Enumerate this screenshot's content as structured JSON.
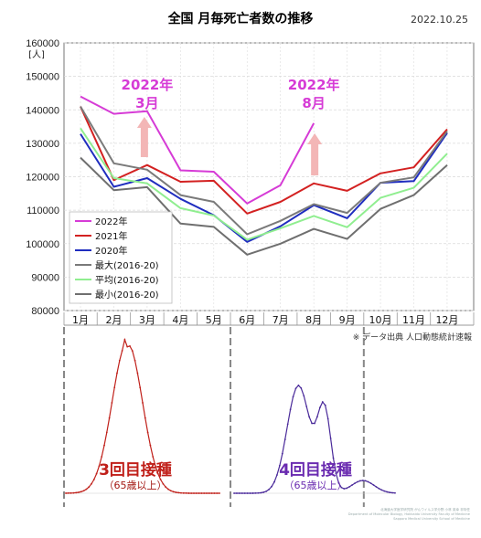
{
  "header": {
    "title": "全国 月毎死亡者数の推移",
    "date": "2022.10.25"
  },
  "chart_data": {
    "type": "line",
    "ylabel": "[人]",
    "ylim": [
      80000,
      160000
    ],
    "yticks": [
      "80000",
      "90000",
      "100000",
      "110000",
      "120000",
      "130000",
      "140000",
      "150000",
      "160000"
    ],
    "categories": [
      "1月",
      "2月",
      "3月",
      "4月",
      "5月",
      "6月",
      "7月",
      "8月",
      "9月",
      "10月",
      "11月",
      "12月"
    ],
    "grid": true,
    "legend_position": "lower-left",
    "series": [
      {
        "name": "2022年",
        "color": "#d63bd6",
        "values": [
          144000,
          138800,
          139600,
          121900,
          121500,
          112000,
          117500,
          136000,
          null,
          null,
          null,
          null
        ]
      },
      {
        "name": "2021年",
        "color": "#d32121",
        "values": [
          141000,
          119000,
          123500,
          118500,
          118800,
          109000,
          112500,
          118000,
          115800,
          121000,
          122800,
          134200
        ]
      },
      {
        "name": "2020年",
        "color": "#1f2dbf",
        "values": [
          132800,
          117000,
          119600,
          113400,
          108500,
          100500,
          105200,
          111500,
          107600,
          118200,
          118700,
          133100
        ]
      },
      {
        "name": "最大(2016-20)",
        "color": "#7a7a7a",
        "values": [
          141000,
          124000,
          122100,
          114500,
          112500,
          102800,
          106800,
          111800,
          109200,
          118200,
          119800,
          133600
        ]
      },
      {
        "name": "平均(2016-20)",
        "color": "#90ee90",
        "values": [
          134500,
          119600,
          118000,
          110600,
          108400,
          101200,
          104600,
          108300,
          104900,
          113700,
          116700,
          126900
        ]
      },
      {
        "name": "最小(2016-20)",
        "color": "#6f6f6f",
        "values": [
          125700,
          116000,
          116900,
          106000,
          105000,
          96700,
          100000,
          104400,
          101400,
          110400,
          114500,
          123500
        ]
      }
    ],
    "annotations": [
      {
        "text": "2022年",
        "category": "3月"
      },
      {
        "text": "3月",
        "category": "3月"
      },
      {
        "text": "2022年",
        "category": "8月"
      },
      {
        "text": "8月",
        "category": "8月"
      }
    ]
  },
  "source_note": "※ データ出典 人口動態統計速報",
  "vaccine_panels": [
    {
      "label": "3回目接種",
      "sublabel": "（65歳以上）",
      "color": "#c0201a"
    },
    {
      "label": "4回目接種",
      "sublabel": "（65歳以上）",
      "color": "#6a2bb0"
    }
  ],
  "credit": [
    "北海道大学医学研究院 がんウイルス学分野 小林 英幸 非特任",
    "Department of Molecular Biology, Hokkaido University Faculty of Medicine",
    "Sapporo Medical University School of Medicine"
  ]
}
